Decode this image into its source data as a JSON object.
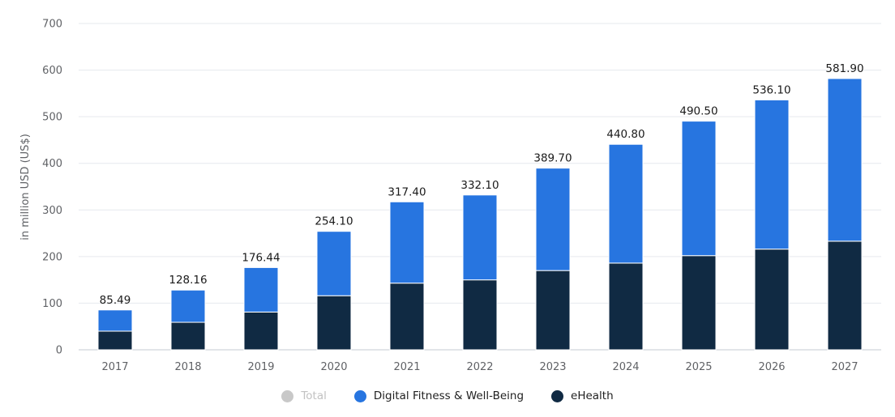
{
  "chart_data": {
    "type": "bar",
    "stacked": true,
    "ylabel": "in million USD (US$)",
    "ylim": [
      0,
      700
    ],
    "yticks": [
      0,
      100,
      200,
      300,
      400,
      500,
      600,
      700
    ],
    "grid": true,
    "legend_placement": "bottom-center",
    "categories": [
      "2017",
      "2018",
      "2019",
      "2020",
      "2021",
      "2022",
      "2023",
      "2024",
      "2025",
      "2026",
      "2027"
    ],
    "totals_labels": [
      "85.49",
      "128.16",
      "176.44",
      "254.10",
      "317.40",
      "332.10",
      "389.70",
      "440.80",
      "490.50",
      "536.10",
      "581.90"
    ],
    "series": [
      {
        "name": "eHealth",
        "color": "#102a43",
        "values": [
          40,
          59,
          81,
          116,
          143,
          150,
          170,
          186,
          202,
          216,
          233
        ]
      },
      {
        "name": "Digital Fitness & Well-Being",
        "color": "#2775e0",
        "values": [
          45.49,
          69.16,
          95.44,
          138.1,
          174.4,
          182.1,
          219.7,
          254.8,
          288.5,
          320.1,
          348.9
        ]
      }
    ],
    "legend": [
      {
        "name": "Total",
        "color": "#c8c8c8",
        "active": false
      },
      {
        "name": "Digital Fitness & Well-Being",
        "color": "#2775e0",
        "active": true
      },
      {
        "name": "eHealth",
        "color": "#102a43",
        "active": true
      }
    ]
  }
}
